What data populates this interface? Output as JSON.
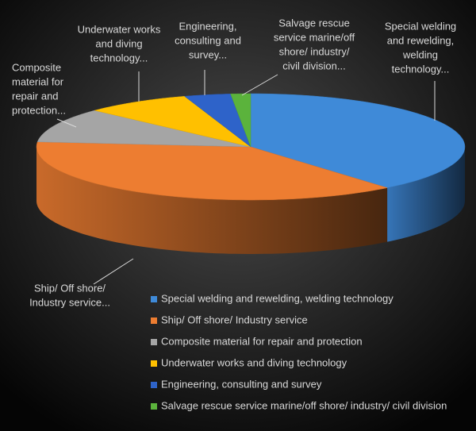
{
  "chart_data": {
    "type": "pie3d",
    "categories": [
      "Special welding and rewelding, welding technology",
      "Ship/ Off shore/ Industry service",
      "Composite material for repair and protection",
      "Underwater works and diving technology",
      "Engineering, consulting and survey",
      "Salvage rescue service marine/off shore/ industry/ civil division"
    ],
    "values": [
      39,
      37.5,
      10.5,
      8,
      3.5,
      1.5
    ],
    "colors": [
      "#3f8ad8",
      "#ed7d31",
      "#a5a5a5",
      "#ffc000",
      "#2e63c9",
      "#5bb33c"
    ],
    "slice_labels": [
      [
        "Special welding",
        "and rewelding,",
        "welding",
        "technology..."
      ],
      [
        "Ship/ Off shore/",
        "Industry service..."
      ],
      [
        "Composite",
        "material for",
        "repair and",
        "protection..."
      ],
      [
        "Underwater works",
        "and diving",
        "technology..."
      ],
      [
        "Engineering,",
        "consulting and",
        "survey..."
      ],
      [
        "Salvage rescue",
        "service marine/off",
        "shore/ industry/",
        "civil division..."
      ]
    ],
    "legend": "bottom-right"
  }
}
